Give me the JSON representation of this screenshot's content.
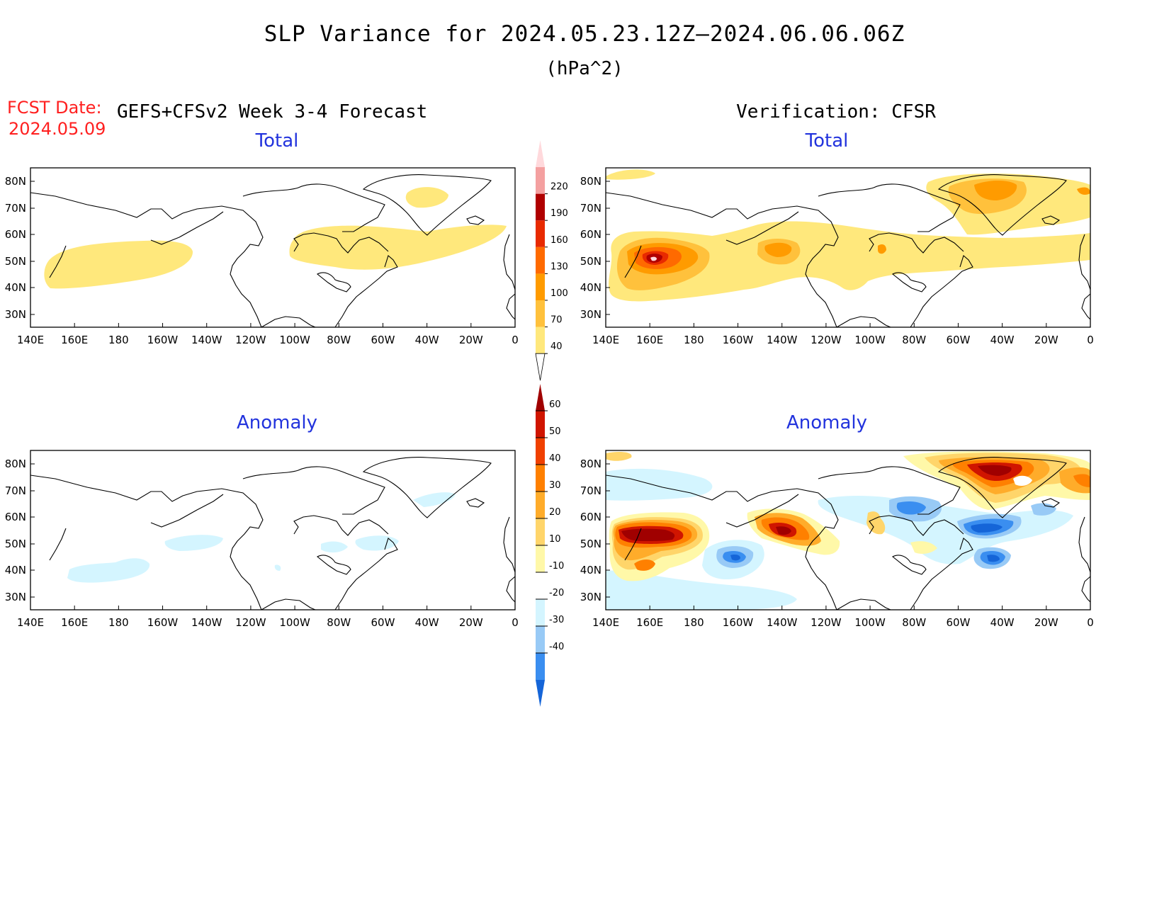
{
  "header": {
    "title": "SLP Variance for 2024.05.23.12Z–2024.06.06.06Z",
    "units": "(hPa^2)",
    "fcst_label": "FCST Date:",
    "fcst_date": "2024.05.09",
    "model": "GEFS+CFSv2 Week 3-4 Forecast",
    "verification": "Verification: CFSR"
  },
  "panels": [
    {
      "title": "Total"
    },
    {
      "title": "Total"
    },
    {
      "title": "Anomaly"
    },
    {
      "title": "Anomaly"
    }
  ],
  "axes": {
    "lon_labels": [
      "140E",
      "160E",
      "180",
      "160W",
      "140W",
      "120W",
      "100W",
      "80W",
      "60W",
      "40W",
      "20W",
      "0"
    ],
    "lat_labels": [
      "80N",
      "70N",
      "60N",
      "50N",
      "40N",
      "30N"
    ]
  },
  "colorbar_total": {
    "levels": [
      "40",
      "70",
      "100",
      "130",
      "160",
      "190",
      "220"
    ],
    "colors": [
      "#ffe87c",
      "#ffc13c",
      "#ff9b00",
      "#ff6a00",
      "#e82a00",
      "#b00000",
      "#f4a0a0",
      "#ffd9dc"
    ]
  },
  "colorbar_anomaly": {
    "levels": [
      "-40",
      "-30",
      "-20",
      "-10",
      "10",
      "20",
      "30",
      "40",
      "50",
      "60"
    ],
    "colors": [
      "#1565d8",
      "#3a8ef0",
      "#98caf6",
      "#d4f5ff",
      "#ffffff",
      "#fff8a8",
      "#ffd56a",
      "#ffac2a",
      "#ff8000",
      "#f04000",
      "#d01500",
      "#a00000"
    ]
  }
}
